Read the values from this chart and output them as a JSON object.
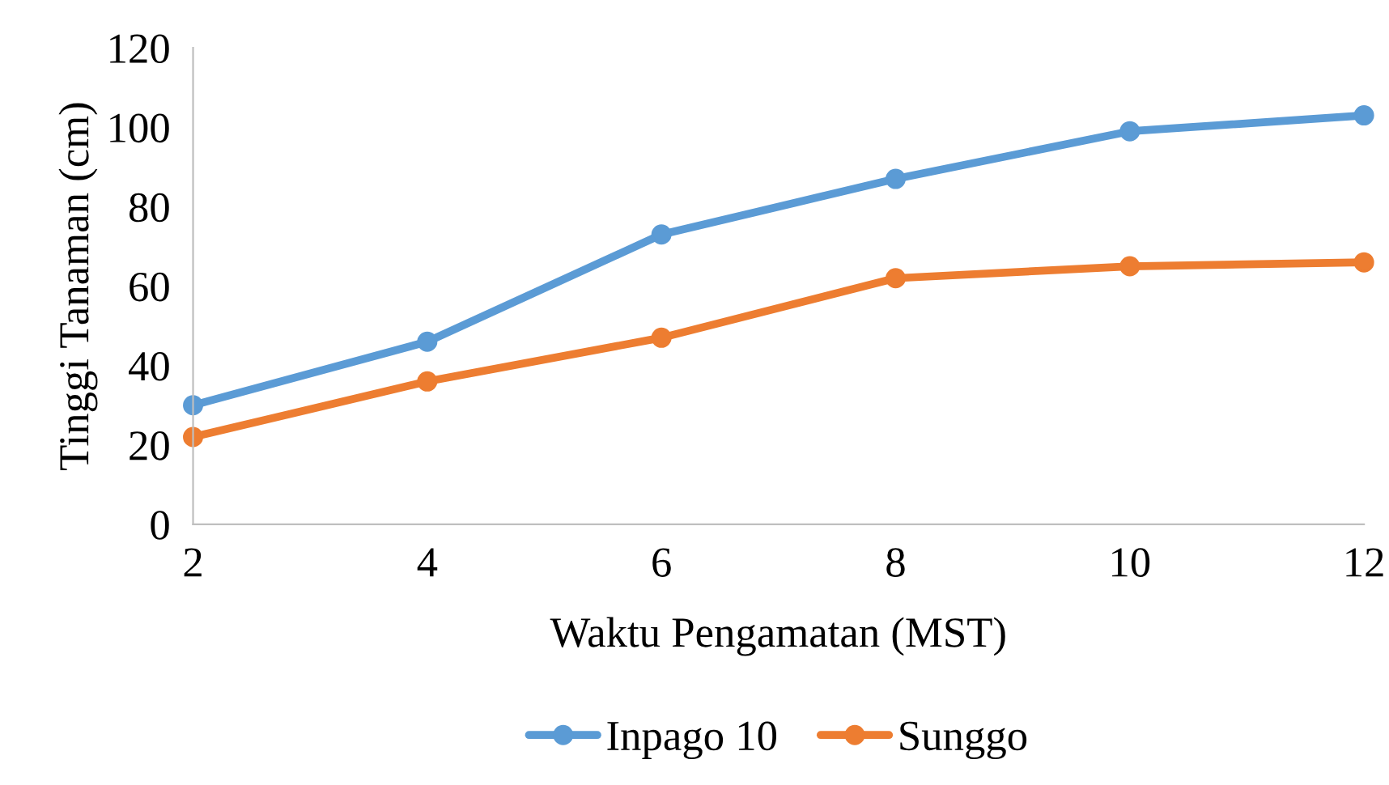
{
  "chart_data": {
    "type": "line",
    "xlabel": "Waktu Pengamatan (MST)",
    "ylabel": "Tinggi Tanaman (cm)",
    "x": [
      2,
      4,
      6,
      8,
      10,
      12
    ],
    "series": [
      {
        "name": "Inpago 10",
        "color": "#5b9bd5",
        "values": [
          30,
          46,
          73,
          87,
          99,
          103
        ]
      },
      {
        "name": "Sunggo",
        "color": "#ed7d31",
        "values": [
          22,
          36,
          47,
          62,
          65,
          66
        ]
      }
    ],
    "xlim": [
      2,
      12
    ],
    "xticks": [
      2,
      4,
      6,
      8,
      10,
      12
    ],
    "ylim": [
      0,
      120
    ],
    "yticks": [
      0,
      20,
      40,
      60,
      80,
      100,
      120
    ],
    "grid": false,
    "legend": "bottom",
    "marker": "circle",
    "line_style": "solid"
  }
}
